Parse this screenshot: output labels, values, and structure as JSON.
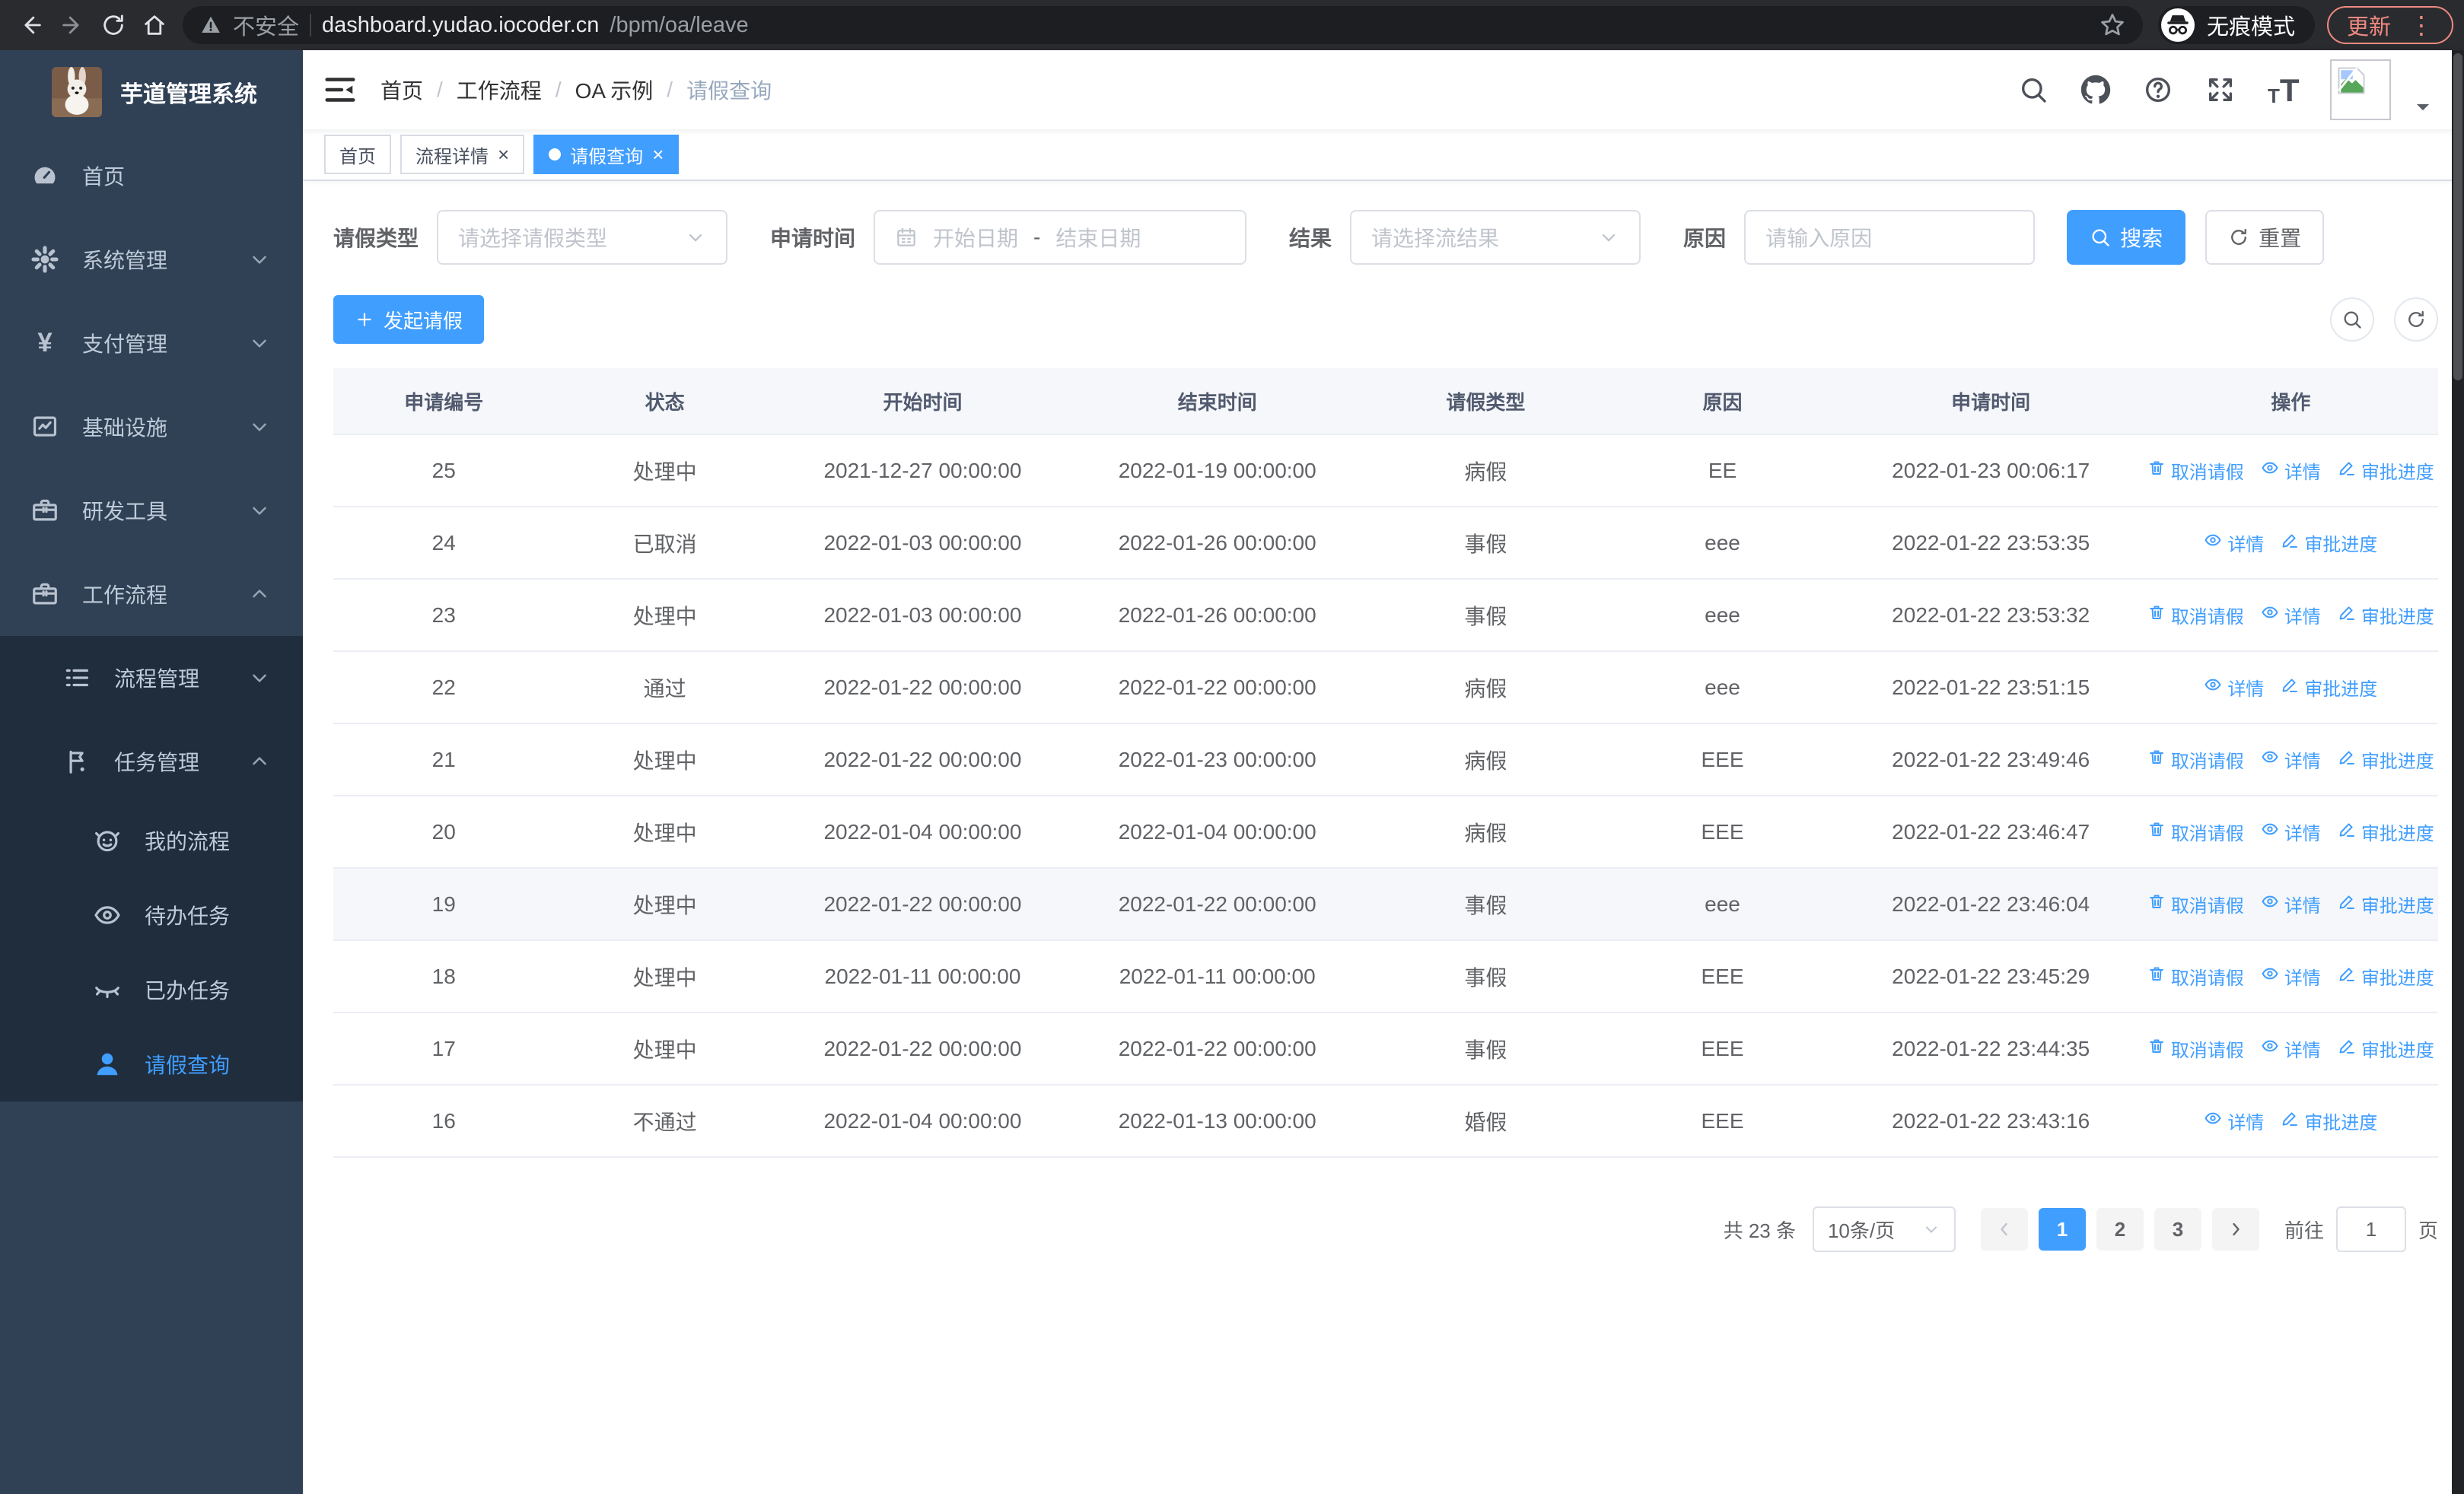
{
  "browser": {
    "security_label": "不安全",
    "url_host": "dashboard.yudao.iocoder.cn",
    "url_path": "/bpm/oa/leave",
    "incognito_label": "无痕模式",
    "update_label": "更新"
  },
  "sidebar": {
    "title": "芋道管理系统",
    "menu": [
      {
        "key": "home",
        "label": "首页",
        "icon": "dashboard",
        "level": 1
      },
      {
        "key": "system",
        "label": "系统管理",
        "icon": "gear",
        "level": 1,
        "chevron": "down"
      },
      {
        "key": "payment",
        "label": "支付管理",
        "icon": "yen",
        "level": 1,
        "chevron": "down"
      },
      {
        "key": "infrastructure",
        "label": "基础设施",
        "icon": "monitor",
        "level": 1,
        "chevron": "down"
      },
      {
        "key": "devtools",
        "label": "研发工具",
        "icon": "briefcase",
        "level": 1,
        "chevron": "down"
      },
      {
        "key": "workflow",
        "label": "工作流程",
        "icon": "briefcase",
        "level": 1,
        "chevron": "up"
      },
      {
        "key": "process-mgmt",
        "label": "流程管理",
        "icon": "list",
        "level": 2,
        "chevron": "down",
        "submenu": true
      },
      {
        "key": "task-mgmt",
        "label": "任务管理",
        "icon": "flag",
        "level": 2,
        "chevron": "up",
        "submenu": true
      },
      {
        "key": "my-process",
        "label": "我的流程",
        "icon": "face",
        "level": 3,
        "submenu": true
      },
      {
        "key": "todo-tasks",
        "label": "待办任务",
        "icon": "eye-open",
        "level": 3,
        "submenu": true
      },
      {
        "key": "done-tasks",
        "label": "已办任务",
        "icon": "eye-closed",
        "level": 3,
        "submenu": true
      },
      {
        "key": "leave-query",
        "label": "请假查询",
        "icon": "user",
        "level": 3,
        "submenu": true,
        "active": true
      }
    ]
  },
  "navbar": {
    "breadcrumb": [
      "首页",
      "工作流程",
      "OA 示例",
      "请假查询"
    ],
    "icons": [
      "search",
      "github",
      "question",
      "fullscreen",
      "font-size"
    ]
  },
  "tabs": [
    {
      "key": "home",
      "label": "首页"
    },
    {
      "key": "process-detail",
      "label": "流程详情",
      "closable": true
    },
    {
      "key": "leave-query",
      "label": "请假查询",
      "closable": true,
      "active": true
    }
  ],
  "filters": {
    "type_label": "请假类型",
    "type_placeholder": "请选择请假类型",
    "time_label": "申请时间",
    "date_start_placeholder": "开始日期",
    "date_separator": "-",
    "date_end_placeholder": "结束日期",
    "result_label": "结果",
    "result_placeholder": "请选择流结果",
    "reason_label": "原因",
    "reason_placeholder": "请输入原因",
    "search_label": "搜索",
    "reset_label": "重置"
  },
  "toolbar": {
    "create_label": "发起请假"
  },
  "table": {
    "columns": [
      "申请编号",
      "状态",
      "开始时间",
      "结束时间",
      "请假类型",
      "原因",
      "申请时间",
      "操作"
    ],
    "action_labels": {
      "cancel": "取消请假",
      "detail": "详情",
      "progress": "审批进度"
    },
    "rows": [
      {
        "id": "25",
        "status": "处理中",
        "start": "2021-12-27 00:00:00",
        "end": "2022-01-19 00:00:00",
        "type": "病假",
        "reason": "EE",
        "applied": "2022-01-23 00:06:17",
        "actions": [
          "cancel",
          "detail",
          "progress"
        ]
      },
      {
        "id": "24",
        "status": "已取消",
        "start": "2022-01-03 00:00:00",
        "end": "2022-01-26 00:00:00",
        "type": "事假",
        "reason": "eee",
        "applied": "2022-01-22 23:53:35",
        "actions": [
          "detail",
          "progress"
        ]
      },
      {
        "id": "23",
        "status": "处理中",
        "start": "2022-01-03 00:00:00",
        "end": "2022-01-26 00:00:00",
        "type": "事假",
        "reason": "eee",
        "applied": "2022-01-22 23:53:32",
        "actions": [
          "cancel",
          "detail",
          "progress"
        ]
      },
      {
        "id": "22",
        "status": "通过",
        "start": "2022-01-22 00:00:00",
        "end": "2022-01-22 00:00:00",
        "type": "病假",
        "reason": "eee",
        "applied": "2022-01-22 23:51:15",
        "actions": [
          "detail",
          "progress"
        ]
      },
      {
        "id": "21",
        "status": "处理中",
        "start": "2022-01-22 00:00:00",
        "end": "2022-01-23 00:00:00",
        "type": "病假",
        "reason": "EEE",
        "applied": "2022-01-22 23:49:46",
        "actions": [
          "cancel",
          "detail",
          "progress"
        ]
      },
      {
        "id": "20",
        "status": "处理中",
        "start": "2022-01-04 00:00:00",
        "end": "2022-01-04 00:00:00",
        "type": "病假",
        "reason": "EEE",
        "applied": "2022-01-22 23:46:47",
        "actions": [
          "cancel",
          "detail",
          "progress"
        ]
      },
      {
        "id": "19",
        "status": "处理中",
        "start": "2022-01-22 00:00:00",
        "end": "2022-01-22 00:00:00",
        "type": "事假",
        "reason": "eee",
        "applied": "2022-01-22 23:46:04",
        "actions": [
          "cancel",
          "detail",
          "progress"
        ],
        "highlight": true
      },
      {
        "id": "18",
        "status": "处理中",
        "start": "2022-01-11 00:00:00",
        "end": "2022-01-11 00:00:00",
        "type": "事假",
        "reason": "EEE",
        "applied": "2022-01-22 23:45:29",
        "actions": [
          "cancel",
          "detail",
          "progress"
        ]
      },
      {
        "id": "17",
        "status": "处理中",
        "start": "2022-01-22 00:00:00",
        "end": "2022-01-22 00:00:00",
        "type": "事假",
        "reason": "EEE",
        "applied": "2022-01-22 23:44:35",
        "actions": [
          "cancel",
          "detail",
          "progress"
        ]
      },
      {
        "id": "16",
        "status": "不通过",
        "start": "2022-01-04 00:00:00",
        "end": "2022-01-13 00:00:00",
        "type": "婚假",
        "reason": "EEE",
        "applied": "2022-01-22 23:43:16",
        "actions": [
          "detail",
          "progress"
        ]
      }
    ]
  },
  "pagination": {
    "total_label": "共 23 条",
    "page_size_label": "10条/页",
    "pages": [
      "1",
      "2",
      "3"
    ],
    "current_page": "1",
    "goto_label": "前往",
    "goto_value": "1",
    "unit_label": "页"
  },
  "colors": {
    "accent": "#409eff",
    "sidebar_bg": "#304156",
    "submenu_bg": "#1f2d3d",
    "update_accent": "#ef8a80"
  }
}
